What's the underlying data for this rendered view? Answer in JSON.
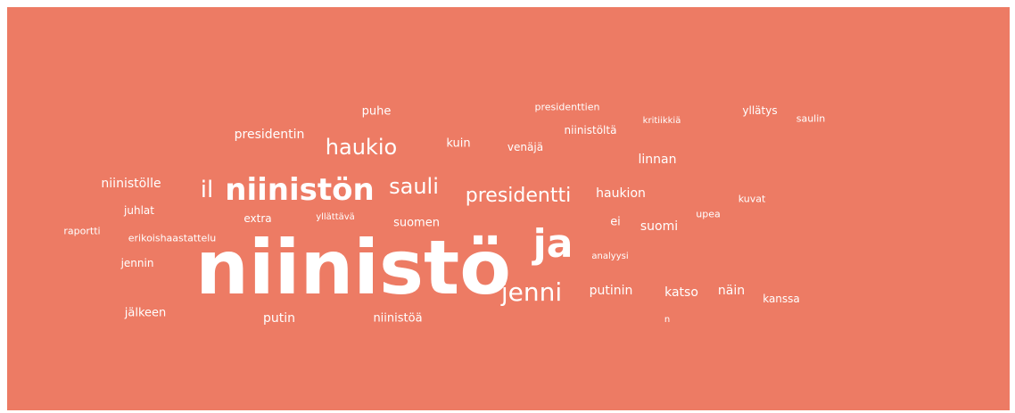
{
  "colors": {
    "background": "#ED7B64",
    "text": "#FFFFFF"
  },
  "words": [
    "niinistö",
    "niinistön",
    "ja",
    "jenni",
    "haukio",
    "presidentti",
    "sauli",
    "il",
    "niinistölle",
    "presidentin",
    "puhe",
    "presidenttien",
    "niinistöltä",
    "kritiikkiä",
    "yllätys",
    "saulin",
    "kuin",
    "venäjä",
    "linnan",
    "haukion",
    "kuvat",
    "juhlat",
    "extra",
    "yllättävä",
    "suomen",
    "ei",
    "suomi",
    "upea",
    "raportti",
    "erikoishaastattelu",
    "jennin",
    "analyysi",
    "putinin",
    "katso",
    "näin",
    "kanssa",
    "jälkeen",
    "putin",
    "niinistöä",
    "n"
  ]
}
